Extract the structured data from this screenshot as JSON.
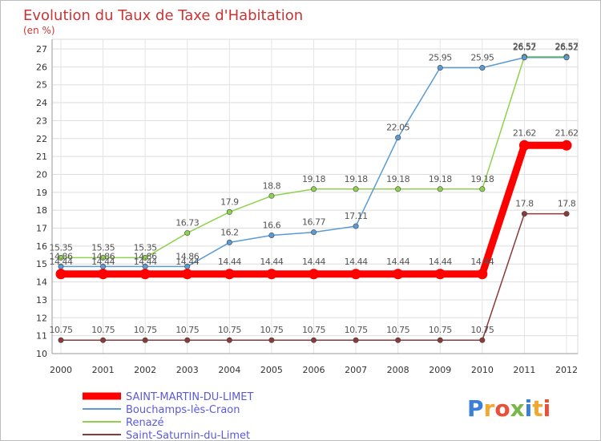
{
  "chart_data": {
    "type": "line",
    "title": "Evolution du Taux de Taxe d'Habitation",
    "subtitle": "(en %)",
    "xlabel": "",
    "ylabel": "",
    "x": [
      "2000",
      "2001",
      "2002",
      "2003",
      "2004",
      "2005",
      "2006",
      "2007",
      "2008",
      "2009",
      "2010",
      "2011",
      "2012"
    ],
    "ylim": [
      10,
      27
    ],
    "yticks": [
      "10",
      "11",
      "12",
      "13",
      "14",
      "15",
      "16",
      "17",
      "18",
      "19",
      "20",
      "21",
      "22",
      "23",
      "24",
      "25",
      "26",
      "27"
    ],
    "grid": true,
    "legend_position": "bottom-left",
    "series": [
      {
        "name": "SAINT-MARTIN-DU-LIMET",
        "color": "#ff0000",
        "values": [
          14.44,
          14.44,
          14.44,
          14.44,
          14.44,
          14.44,
          14.44,
          14.44,
          14.44,
          14.44,
          14.44,
          21.62,
          21.62
        ],
        "labels": [
          "14.44",
          "14.44",
          "14.44",
          "14.44",
          "14.44",
          "14.44",
          "14.44",
          "14.44",
          "14.44",
          "14.44",
          "14.44",
          "21.62",
          "21.62"
        ]
      },
      {
        "name": "Bouchamps-lès-Craon",
        "color": "#5a9bd5",
        "values": [
          14.86,
          14.86,
          14.86,
          14.86,
          16.2,
          16.6,
          16.77,
          17.11,
          22.05,
          25.95,
          25.95,
          26.52,
          26.52
        ],
        "labels": [
          "14.86",
          "14.86",
          "14.86",
          "14.86",
          "16.2",
          "16.6",
          "16.77",
          "17.11",
          "22.05",
          "25.95",
          "25.95",
          "26.52",
          "26.52"
        ]
      },
      {
        "name": "Renazé",
        "color": "#8fd14f",
        "values": [
          15.35,
          15.35,
          15.35,
          16.73,
          17.9,
          18.8,
          19.18,
          19.18,
          19.18,
          19.18,
          19.18,
          26.57,
          26.57
        ],
        "labels": [
          "15.35",
          "15.35",
          "15.35",
          "16.73",
          "17.9",
          "18.8",
          "19.18",
          "19.18",
          "19.18",
          "19.18",
          "19.18",
          "26.57",
          "26.57"
        ]
      },
      {
        "name": "Saint-Saturnin-du-Limet",
        "color": "#8b3a3a",
        "values": [
          10.75,
          10.75,
          10.75,
          10.75,
          10.75,
          10.75,
          10.75,
          10.75,
          10.75,
          10.75,
          10.75,
          17.8,
          17.8
        ],
        "labels": [
          "10.75",
          "10.75",
          "10.75",
          "10.75",
          "10.75",
          "10.75",
          "10.75",
          "10.75",
          "10.75",
          "10.75",
          "10.75",
          "17.8",
          "17.8"
        ]
      }
    ]
  },
  "logo": {
    "text": "Proxiti"
  }
}
